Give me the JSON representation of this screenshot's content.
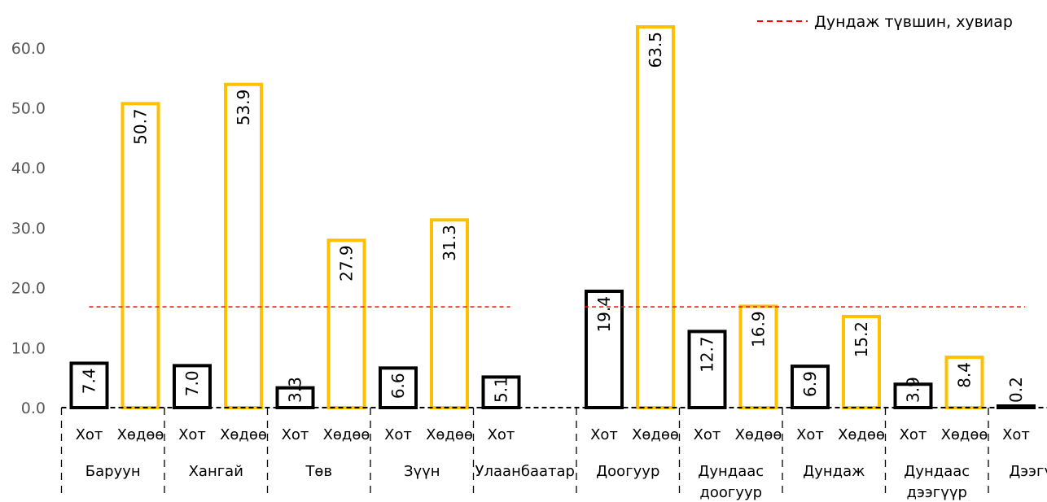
{
  "chart_data": {
    "type": "bar",
    "ylim": [
      0,
      60
    ],
    "yticks": [
      "0.0",
      "10.0",
      "20.0",
      "30.0",
      "40.0",
      "50.0",
      "60.0"
    ],
    "legend": {
      "label": "Дундаж түвшин, хувиар",
      "placement": "top-right",
      "color": "#ff0000"
    },
    "average_line_value": 16.8,
    "colors": {
      "city": "#000000",
      "rural": "#ffc000"
    },
    "groups": [
      {
        "name": "Баруун",
        "bars": [
          {
            "label": "Хот",
            "kind": "city",
            "value": 7.4,
            "text": "7.4"
          },
          {
            "label": "Хөдөө",
            "kind": "rural",
            "value": 50.7,
            "text": "50.7"
          }
        ]
      },
      {
        "name": "Хангай",
        "bars": [
          {
            "label": "Хот",
            "kind": "city",
            "value": 7.0,
            "text": "7.0"
          },
          {
            "label": "Хөдөө",
            "kind": "rural",
            "value": 53.9,
            "text": "53.9"
          }
        ]
      },
      {
        "name": "Төв",
        "bars": [
          {
            "label": "Хот",
            "kind": "city",
            "value": 3.3,
            "text": "3.3"
          },
          {
            "label": "Хөдөө",
            "kind": "rural",
            "value": 27.9,
            "text": "27.9"
          }
        ]
      },
      {
        "name": "Зүүн",
        "bars": [
          {
            "label": "Хот",
            "kind": "city",
            "value": 6.6,
            "text": "6.6"
          },
          {
            "label": "Хөдөө",
            "kind": "rural",
            "value": 31.3,
            "text": "31.3"
          }
        ]
      },
      {
        "name": "Улаанбаатар",
        "bars": [
          {
            "label": "Хот",
            "kind": "city",
            "value": 5.1,
            "text": "5.1"
          }
        ]
      },
      {
        "name": "Доогуур",
        "bars": [
          {
            "label": "Хот",
            "kind": "city",
            "value": 19.4,
            "text": "19.4"
          },
          {
            "label": "Хөдөө",
            "kind": "rural",
            "value": 63.5,
            "text": "63.5"
          }
        ]
      },
      {
        "name": "Дундаас доогуур",
        "bars": [
          {
            "label": "Хот",
            "kind": "city",
            "value": 12.7,
            "text": "12.7"
          },
          {
            "label": "Хөдөө",
            "kind": "rural",
            "value": 16.9,
            "text": "16.9"
          }
        ]
      },
      {
        "name": "Дундаж",
        "bars": [
          {
            "label": "Хот",
            "kind": "city",
            "value": 6.9,
            "text": "6.9"
          },
          {
            "label": "Хөдөө",
            "kind": "rural",
            "value": 15.2,
            "text": "15.2"
          }
        ]
      },
      {
        "name": "Дундаас дээгүүр",
        "bars": [
          {
            "label": "Хот",
            "kind": "city",
            "value": 3.9,
            "text": "3.9"
          },
          {
            "label": "Хөдөө",
            "kind": "rural",
            "value": 8.4,
            "text": "8.4"
          }
        ]
      },
      {
        "name": "Дээгүүр",
        "bars": [
          {
            "label": "Хот",
            "kind": "city",
            "value": 0.2,
            "text": "0.2"
          }
        ]
      }
    ]
  }
}
